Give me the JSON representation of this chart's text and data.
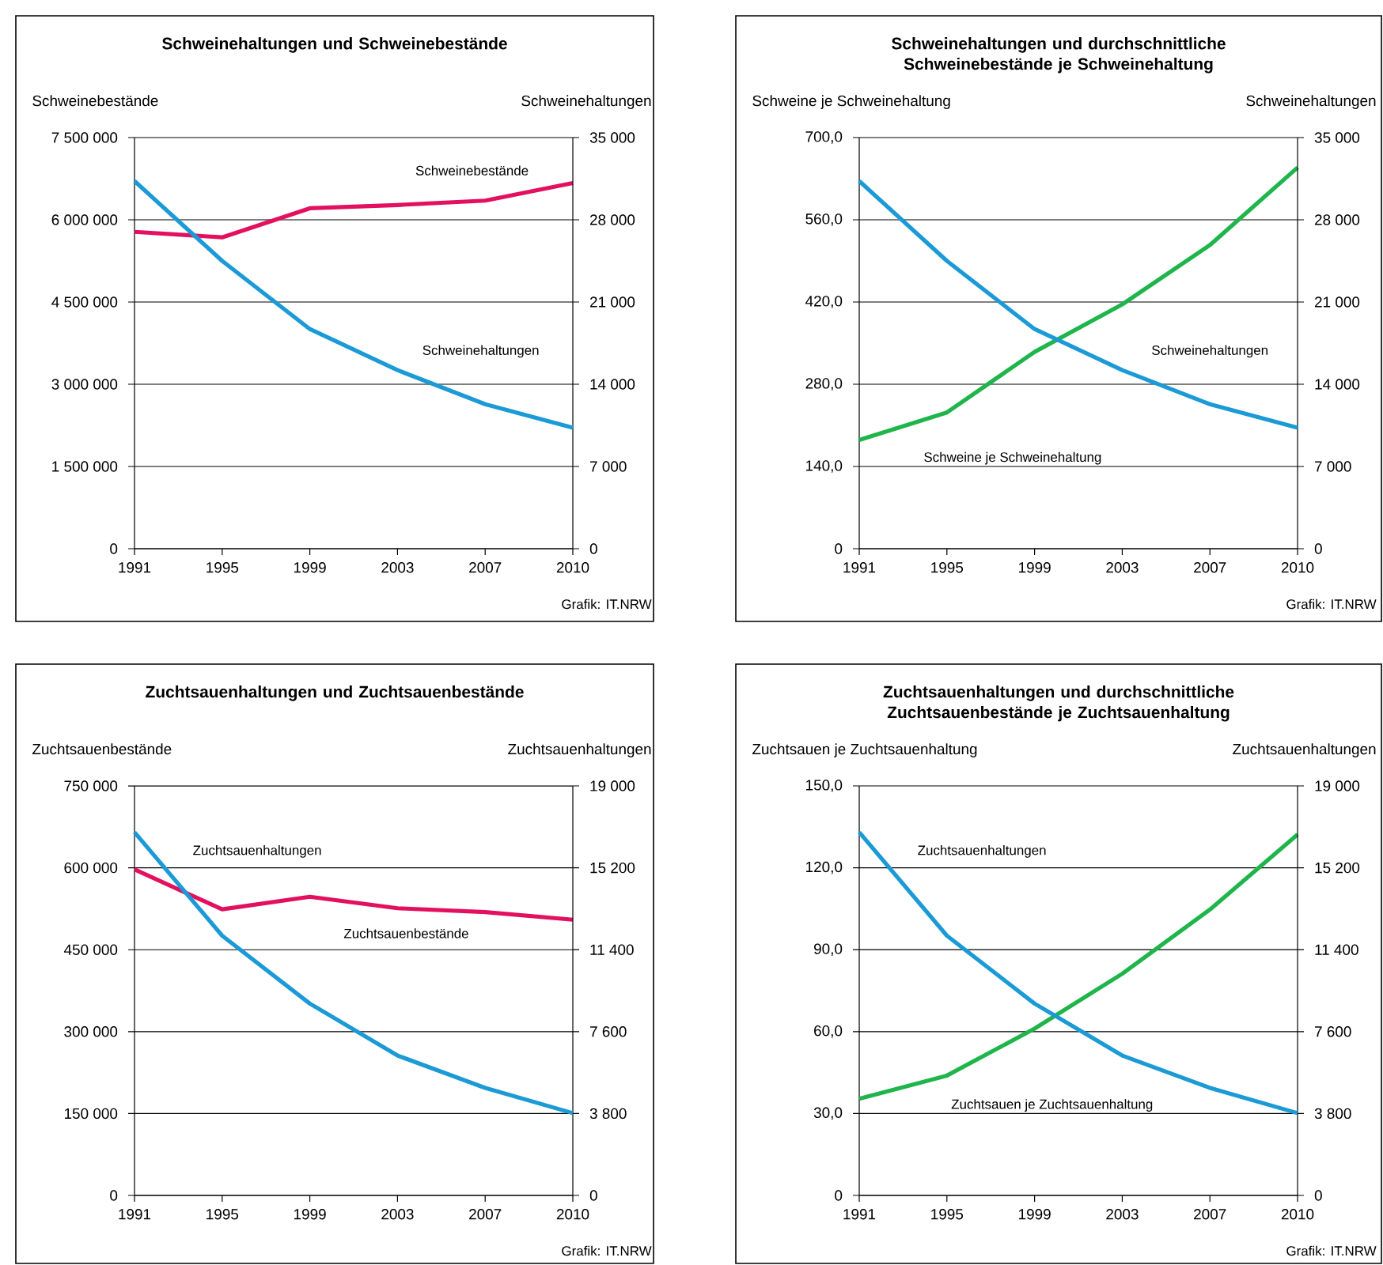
{
  "chart_data": [
    {
      "type": "line",
      "title": "Schweinehaltungen und Schweinebestände",
      "ylabel": "Schweinebestände",
      "y2label": "Schweinehaltungen",
      "categories": [
        "1991",
        "1995",
        "1999",
        "2003",
        "2007",
        "2010"
      ],
      "grid": "y",
      "ylim": [
        0,
        7500000
      ],
      "yticks": [
        {
          "value": 0,
          "label": "0"
        },
        {
          "value": 1500000,
          "label": "1 500 000"
        },
        {
          "value": 3000000,
          "label": "3 000 000"
        },
        {
          "value": 4500000,
          "label": "4 500 000"
        },
        {
          "value": 6000000,
          "label": "6 000 000"
        },
        {
          "value": 7500000,
          "label": "7 500 000"
        }
      ],
      "y2lim": [
        0,
        35000
      ],
      "y2ticks": [
        {
          "value": 0,
          "label": "0"
        },
        {
          "value": 7000,
          "label": "7 000"
        },
        {
          "value": 14000,
          "label": "14 000"
        },
        {
          "value": 21000,
          "label": "21 000"
        },
        {
          "value": 28000,
          "label": "28 000"
        },
        {
          "value": 35000,
          "label": "35 000"
        }
      ],
      "series": [
        {
          "name": "Schweinebestände",
          "color": "#e2105e",
          "values": [
            5780000,
            5680000,
            6210000,
            6270000,
            6350000,
            6670000
          ]
        },
        {
          "name": "Schweinehaltungen",
          "color": "#1b9ad6",
          "axis": "y2",
          "values": [
            31300,
            24500,
            18700,
            15200,
            12300,
            10300
          ]
        }
      ],
      "annotations": [
        "Grafik: IT.NRW"
      ]
    },
    {
      "type": "line",
      "title": "Schweinehaltungen und durchschnittliche Schweinebestände je Schweinehaltung",
      "ylabel": "Schweine je Schweinehaltung",
      "y2label": "Schweinehaltungen",
      "categories": [
        "1991",
        "1995",
        "1999",
        "2003",
        "2007",
        "2010"
      ],
      "grid": "y",
      "ylim": [
        0,
        700
      ],
      "yticks": [
        {
          "value": 0,
          "label": "0"
        },
        {
          "value": 140,
          "label": "140,0"
        },
        {
          "value": 280,
          "label": "280,0"
        },
        {
          "value": 420,
          "label": "420,0"
        },
        {
          "value": 560,
          "label": "560,0"
        },
        {
          "value": 700,
          "label": "700,0"
        }
      ],
      "y2lim": [
        0,
        35000
      ],
      "y2ticks": [
        {
          "value": 0,
          "label": "0"
        },
        {
          "value": 7000,
          "label": "7 000"
        },
        {
          "value": 14000,
          "label": "14 000"
        },
        {
          "value": 21000,
          "label": "21 000"
        },
        {
          "value": 28000,
          "label": "28 000"
        },
        {
          "value": 35000,
          "label": "35 000"
        }
      ],
      "series": [
        {
          "name": "Schweine je Schweinehaltung",
          "color": "#1fb54b",
          "values": [
            185,
            232,
            335,
            416,
            517,
            649
          ]
        },
        {
          "name": "Schweinehaltungen",
          "color": "#1b9ad6",
          "axis": "y2",
          "values": [
            31300,
            24500,
            18700,
            15200,
            12300,
            10300
          ]
        }
      ],
      "annotations": [
        "Grafik: IT.NRW"
      ]
    },
    {
      "type": "line",
      "title": "Zuchtsauenhaltungen und Zuchtsauenbestände",
      "ylabel": "Zuchtsauenbestände",
      "y2label": "Zuchtsauenhaltungen",
      "categories": [
        "1991",
        "1995",
        "1999",
        "2003",
        "2007",
        "2010"
      ],
      "grid": "y",
      "ylim": [
        0,
        750000
      ],
      "yticks": [
        {
          "value": 0,
          "label": "0"
        },
        {
          "value": 150000,
          "label": "150 000"
        },
        {
          "value": 300000,
          "label": "300 000"
        },
        {
          "value": 450000,
          "label": "450 000"
        },
        {
          "value": 600000,
          "label": "600 000"
        },
        {
          "value": 750000,
          "label": "750 000"
        }
      ],
      "y2lim": [
        0,
        19000
      ],
      "y2ticks": [
        {
          "value": 0,
          "label": "0"
        },
        {
          "value": 3800,
          "label": "3 800"
        },
        {
          "value": 7600,
          "label": "7 600"
        },
        {
          "value": 11400,
          "label": "11 400"
        },
        {
          "value": 15200,
          "label": "15 200"
        },
        {
          "value": 19000,
          "label": "19 000"
        }
      ],
      "series": [
        {
          "name": "Zuchtsauenbestände",
          "color": "#e2105e",
          "values": [
            597000,
            524000,
            547000,
            526000,
            519000,
            505000
          ]
        },
        {
          "name": "Zuchtsauenhaltungen",
          "color": "#1b9ad6",
          "axis": "y2",
          "values": [
            16850,
            12050,
            8900,
            6490,
            4990,
            3820
          ]
        }
      ],
      "annotations": [
        "Grafik: IT.NRW"
      ]
    },
    {
      "type": "line",
      "title": "Zuchtsauenhaltungen und durchschnittliche Zuchtsauenbestände je Zuchtsauenhaltung",
      "ylabel": "Zuchtsauen je Zuchtsauenhaltung",
      "y2label": "Zuchtsauenhaltungen",
      "categories": [
        "1991",
        "1995",
        "1999",
        "2003",
        "2007",
        "2010"
      ],
      "grid": "y",
      "ylim": [
        0,
        150
      ],
      "yticks": [
        {
          "value": 0,
          "label": "0"
        },
        {
          "value": 30,
          "label": "30,0"
        },
        {
          "value": 60,
          "label": "60,0"
        },
        {
          "value": 90,
          "label": "90,0"
        },
        {
          "value": 120,
          "label": "120,0"
        },
        {
          "value": 150,
          "label": "150,0"
        }
      ],
      "y2lim": [
        0,
        19000
      ],
      "y2ticks": [
        {
          "value": 0,
          "label": "0"
        },
        {
          "value": 3800,
          "label": "3 800"
        },
        {
          "value": 7600,
          "label": "7 600"
        },
        {
          "value": 11400,
          "label": "11 400"
        },
        {
          "value": 15200,
          "label": "15 200"
        },
        {
          "value": 19000,
          "label": "19 000"
        }
      ],
      "series": [
        {
          "name": "Zuchtsauen je Zuchtsauenhaltung",
          "color": "#1fb54b",
          "values": [
            35.4,
            43.9,
            61.1,
            81.2,
            104.7,
            132.2
          ]
        },
        {
          "name": "Zuchtsauenhaltungen",
          "color": "#1b9ad6",
          "axis": "y2",
          "values": [
            16850,
            12050,
            8900,
            6490,
            4990,
            3820
          ]
        }
      ],
      "annotations": [
        "Grafik: IT.NRW"
      ]
    }
  ]
}
